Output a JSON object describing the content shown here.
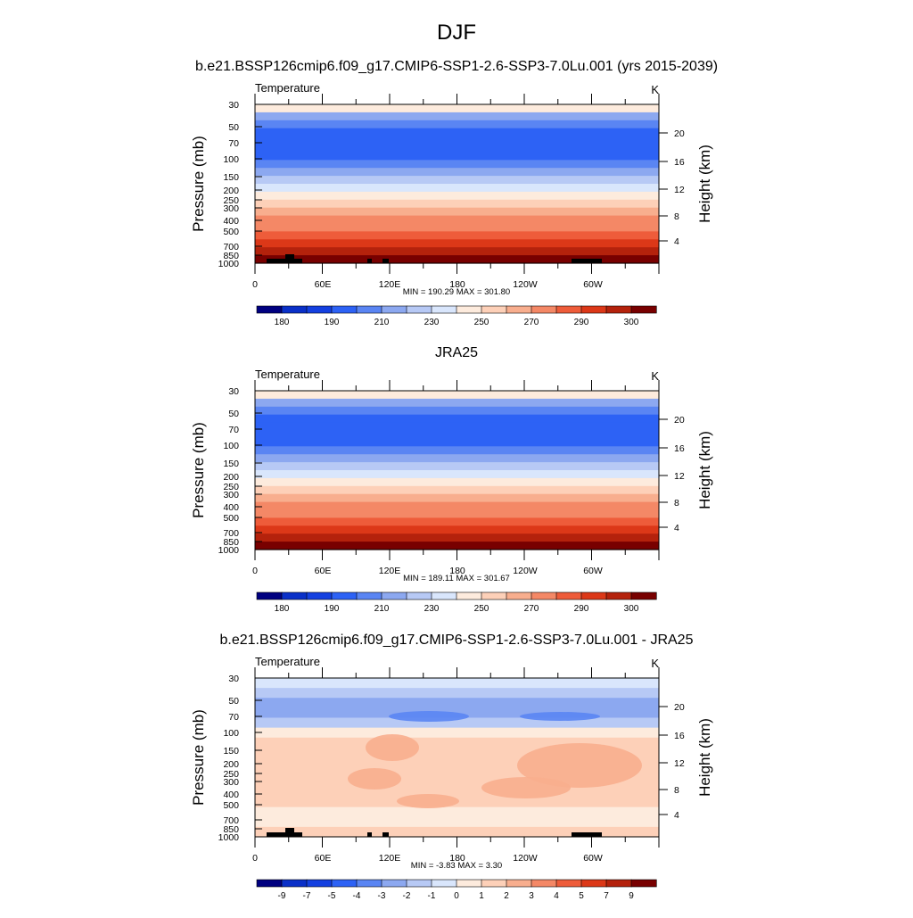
{
  "figure": {
    "title": "DJF",
    "subtitle": "b.e21.BSSP126cmip6.f09_g17.CMIP6-SSP1-2.6-SSP3-7.0Lu.001 (yrs 2015-2039)"
  },
  "palette": [
    "#000080",
    "#0a30c8",
    "#1440e0",
    "#2d62f5",
    "#5a85f3",
    "#8ca8f0",
    "#b7c9f5",
    "#d9e6fc",
    "#fdebdd",
    "#fdd0b8",
    "#f8ae8e",
    "#f48866",
    "#ee5c3a",
    "#dc3818",
    "#b4220c",
    "#780000"
  ],
  "chart_data": [
    {
      "type": "heatmap",
      "panel_title": "",
      "left_label": "Temperature",
      "units": "K",
      "ylabel_left": "Pressure (mb)",
      "ylabel_right": "Height (km)",
      "pressure_ticks": [
        "30",
        "50",
        "70",
        "100",
        "150",
        "200",
        "250",
        "300",
        "400",
        "500",
        "700",
        "850",
        "1000"
      ],
      "height_ticks": [
        "20",
        "16",
        "12",
        "8",
        "4"
      ],
      "lon_ticks": [
        "0",
        "60E",
        "120E",
        "180",
        "120W",
        "60W"
      ],
      "minmax": "MIN = 190.29  MAX = 301.80",
      "colorbar_labels": [
        "180",
        "190",
        "210",
        "230",
        "250",
        "270",
        "290",
        "300"
      ],
      "band_colors_top_to_bottom": [
        8,
        5,
        4,
        3,
        3,
        3,
        3,
        4,
        5,
        6,
        7,
        8,
        9,
        10,
        11,
        11,
        12,
        13,
        14,
        15
      ],
      "surface_blocks": true
    },
    {
      "type": "heatmap",
      "panel_title": "JRA25",
      "left_label": "Temperature",
      "units": "K",
      "ylabel_left": "Pressure (mb)",
      "ylabel_right": "Height (km)",
      "pressure_ticks": [
        "30",
        "50",
        "70",
        "100",
        "150",
        "200",
        "250",
        "300",
        "400",
        "500",
        "700",
        "850",
        "1000"
      ],
      "height_ticks": [
        "20",
        "16",
        "12",
        "8",
        "4"
      ],
      "lon_ticks": [
        "0",
        "60E",
        "120E",
        "180",
        "120W",
        "60W"
      ],
      "minmax": "MIN = 189.11  MAX = 301.67",
      "colorbar_labels": [
        "180",
        "190",
        "210",
        "230",
        "250",
        "270",
        "290",
        "300"
      ],
      "band_colors_top_to_bottom": [
        8,
        5,
        4,
        3,
        3,
        3,
        3,
        4,
        5,
        6,
        7,
        8,
        9,
        10,
        11,
        11,
        12,
        13,
        14,
        15
      ],
      "surface_blocks": false
    },
    {
      "type": "heatmap",
      "panel_title": "b.e21.BSSP126cmip6.f09_g17.CMIP6-SSP1-2.6-SSP3-7.0Lu.001 - JRA25",
      "left_label": "Temperature",
      "units": "K",
      "ylabel_left": "Pressure (mb)",
      "ylabel_right": "Height (km)",
      "pressure_ticks": [
        "30",
        "50",
        "70",
        "100",
        "150",
        "200",
        "250",
        "300",
        "400",
        "500",
        "700",
        "850",
        "1000"
      ],
      "height_ticks": [
        "20",
        "16",
        "12",
        "8",
        "4"
      ],
      "lon_ticks": [
        "0",
        "60E",
        "120E",
        "180",
        "120W",
        "60W"
      ],
      "minmax": "MIN =  -3.83  MAX =   3.30",
      "colorbar_labels": [
        "-9",
        "-7",
        "-5",
        "-4",
        "-3",
        "-2",
        "-1",
        "0",
        "1",
        "2",
        "3",
        "4",
        "5",
        "7",
        "9"
      ],
      "band_colors_top_to_bottom": [
        7,
        6,
        5,
        5,
        6,
        8,
        9,
        9,
        9,
        9,
        9,
        9,
        9,
        8,
        8,
        9
      ],
      "surface_blocks": true
    }
  ]
}
